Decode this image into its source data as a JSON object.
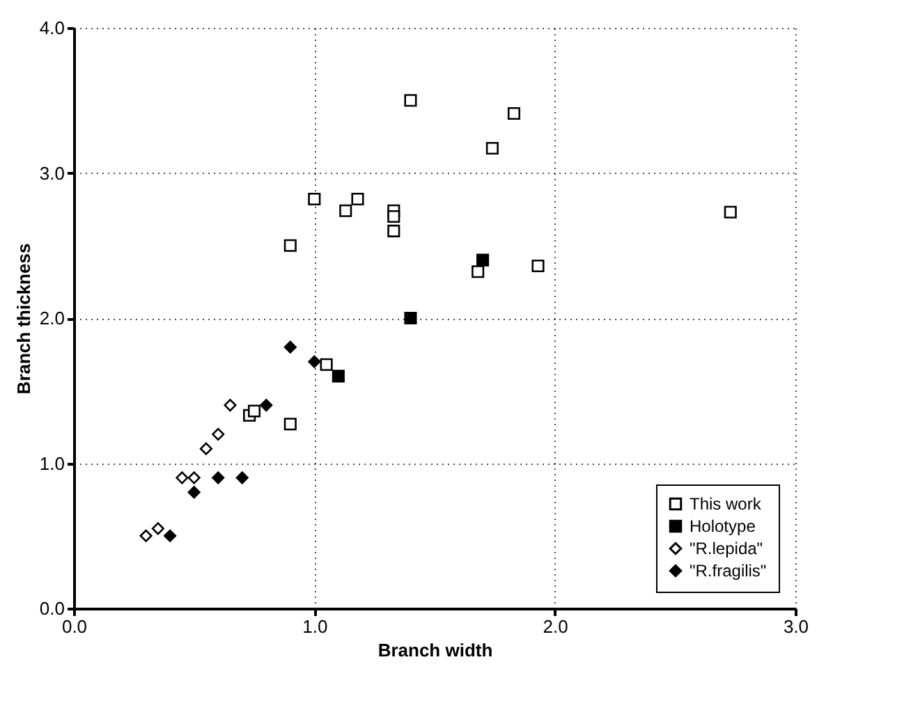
{
  "chart_data": {
    "type": "scatter",
    "xlabel": "Branch width",
    "ylabel": "Branch thickness",
    "xlim": [
      0,
      3
    ],
    "ylim": [
      0,
      4
    ],
    "xticks": [
      {
        "value": 0,
        "label": "0.0"
      },
      {
        "value": 1,
        "label": "1.0"
      },
      {
        "value": 2,
        "label": "2.0"
      },
      {
        "value": 3,
        "label": "3.0"
      }
    ],
    "yticks": [
      {
        "value": 0,
        "label": "0.0"
      },
      {
        "value": 1,
        "label": "1.0"
      },
      {
        "value": 2,
        "label": "2.0"
      },
      {
        "value": 3,
        "label": "3.0"
      },
      {
        "value": 4,
        "label": "4.0"
      }
    ],
    "grid": true,
    "legend": "bottom right",
    "series": [
      {
        "name": "This work",
        "color": "#ffffff",
        "marker": "square",
        "x": [
          0.9,
          1.0,
          1.13,
          1.18,
          1.33,
          1.33,
          1.33,
          1.4,
          1.74,
          1.83,
          1.68,
          1.93,
          2.73,
          1.05,
          0.73,
          0.75,
          0.9
        ],
        "values": [
          2.5,
          2.82,
          2.74,
          2.82,
          2.74,
          2.7,
          2.6,
          3.5,
          3.17,
          3.41,
          2.32,
          2.36,
          2.73,
          1.68,
          1.33,
          1.36,
          1.27
        ]
      },
      {
        "name": "Holotype",
        "color": "#000000",
        "marker": "square",
        "x": [
          1.1,
          1.4,
          1.7
        ],
        "values": [
          1.6,
          2.0,
          2.4
        ]
      },
      {
        "name": "\"R.lepida\"",
        "color": "#ffffff",
        "marker": "diamond",
        "x": [
          0.3,
          0.35,
          0.45,
          0.5,
          0.55,
          0.6,
          0.65
        ],
        "values": [
          0.5,
          0.55,
          0.9,
          0.9,
          1.1,
          1.2,
          1.4
        ]
      },
      {
        "name": "\"R.fragilis\"",
        "color": "#000000",
        "marker": "diamond",
        "x": [
          0.4,
          0.5,
          0.6,
          0.7,
          0.8,
          0.9,
          1.0
        ],
        "values": [
          0.5,
          0.8,
          0.9,
          0.9,
          1.4,
          1.8,
          1.7
        ]
      }
    ]
  }
}
